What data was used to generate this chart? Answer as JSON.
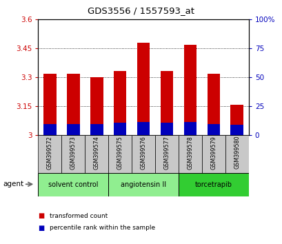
{
  "title": "GDS3556 / 1557593_at",
  "samples": [
    "GSM399572",
    "GSM399573",
    "GSM399574",
    "GSM399575",
    "GSM399576",
    "GSM399577",
    "GSM399578",
    "GSM399579",
    "GSM399580"
  ],
  "red_values": [
    3.32,
    3.32,
    3.3,
    3.335,
    3.48,
    3.335,
    3.47,
    3.32,
    3.16
  ],
  "blue_values": [
    3.06,
    3.06,
    3.06,
    3.065,
    3.07,
    3.065,
    3.07,
    3.06,
    3.055
  ],
  "base": 3.0,
  "ylim_left": [
    3.0,
    3.6
  ],
  "ylim_right": [
    0,
    100
  ],
  "yticks_left": [
    3.0,
    3.15,
    3.3,
    3.45,
    3.6
  ],
  "ytick_labels_left": [
    "3",
    "3.15",
    "3.3",
    "3.45",
    "3.6"
  ],
  "yticks_right": [
    0,
    25,
    50,
    75,
    100
  ],
  "ytick_labels_right": [
    "0",
    "25",
    "50",
    "75",
    "100%"
  ],
  "groups": [
    {
      "label": "solvent control",
      "indices": [
        0,
        1,
        2
      ],
      "color": "#90EE90"
    },
    {
      "label": "angiotensin II",
      "indices": [
        3,
        4,
        5
      ],
      "color": "#90EE90"
    },
    {
      "label": "torcetrapib",
      "indices": [
        6,
        7,
        8
      ],
      "color": "#32CD32"
    }
  ],
  "bar_width": 0.55,
  "red_color": "#CC0000",
  "blue_color": "#0000BB",
  "grid_color": "#000000",
  "bg_figure": "#FFFFFF",
  "label_color_left": "#CC0000",
  "label_color_right": "#0000BB",
  "legend_items": [
    {
      "label": "transformed count",
      "color": "#CC0000"
    },
    {
      "label": "percentile rank within the sample",
      "color": "#0000BB"
    }
  ]
}
